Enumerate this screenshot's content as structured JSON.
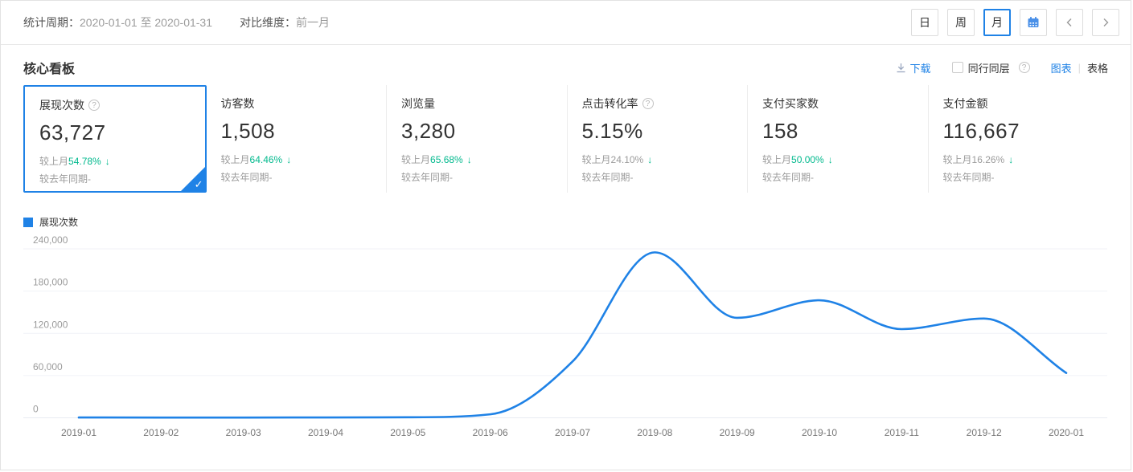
{
  "colors": {
    "accent": "#1f82e6",
    "green": "#00b98d",
    "muted": "#9b9b9b"
  },
  "toolbar": {
    "stat_period_label": "统计周期：",
    "stat_period_value": "2020-01-01 至 2020-01-31",
    "compare_label": "对比维度：",
    "compare_value": "前一月",
    "granularity": [
      {
        "label": "日",
        "selected": false
      },
      {
        "label": "周",
        "selected": false
      },
      {
        "label": "月",
        "selected": true
      }
    ],
    "icons": [
      "calendar-icon",
      "chevron-left-icon",
      "chevron-right-icon"
    ]
  },
  "panel": {
    "title": "核心看板",
    "download_label": "下载",
    "peer_compare_label": "同行同层",
    "view_toggle": {
      "chart_label": "图表",
      "table_label": "表格",
      "active": "图表"
    }
  },
  "cards": [
    {
      "title": "展现次数",
      "help": true,
      "value": "63,727",
      "mom_label": "较上月",
      "mom_value": "54.78%",
      "mom_trend": "down",
      "mom_value_color": "green",
      "yoy_text": "较去年同期-",
      "selected": true
    },
    {
      "title": "访客数",
      "help": false,
      "value": "1,508",
      "mom_label": "较上月",
      "mom_value": "64.46%",
      "mom_trend": "down",
      "mom_value_color": "green",
      "yoy_text": "较去年同期-",
      "selected": false
    },
    {
      "title": "浏览量",
      "help": false,
      "value": "3,280",
      "mom_label": "较上月",
      "mom_value": "65.68%",
      "mom_trend": "down",
      "mom_value_color": "green",
      "yoy_text": "较去年同期-",
      "selected": false
    },
    {
      "title": "点击转化率",
      "help": true,
      "value": "5.15%",
      "mom_label": "较上月",
      "mom_value": "24.10%",
      "mom_trend": "down",
      "mom_value_color": "gray",
      "yoy_text": "较去年同期-",
      "selected": false
    },
    {
      "title": "支付买家数",
      "help": false,
      "value": "158",
      "mom_label": "较上月",
      "mom_value": "50.00%",
      "mom_trend": "down",
      "mom_value_color": "green",
      "yoy_text": "较去年同期-",
      "selected": false
    },
    {
      "title": "支付金额",
      "help": false,
      "value": "116,667",
      "mom_label": "较上月",
      "mom_value": "16.26%",
      "mom_trend": "down",
      "mom_value_color": "gray",
      "yoy_text": "较去年同期-",
      "selected": false
    }
  ],
  "chart_data": {
    "type": "line",
    "smooth": true,
    "grid": true,
    "legend_position": "top-left",
    "legend": [
      "展现次数"
    ],
    "x": [
      "2019-01",
      "2019-02",
      "2019-03",
      "2019-04",
      "2019-05",
      "2019-06",
      "2019-07",
      "2019-08",
      "2019-09",
      "2019-10",
      "2019-11",
      "2019-12",
      "2020-01"
    ],
    "series": [
      {
        "name": "展现次数",
        "color": "#1f82e6",
        "values": [
          500,
          400,
          400,
          500,
          800,
          5000,
          80000,
          235000,
          142000,
          167000,
          126000,
          141000,
          63727
        ]
      }
    ],
    "ylim": [
      0,
      240000
    ],
    "yticks": [
      0,
      60000,
      120000,
      180000,
      240000
    ],
    "xlabel": "",
    "ylabel": ""
  }
}
